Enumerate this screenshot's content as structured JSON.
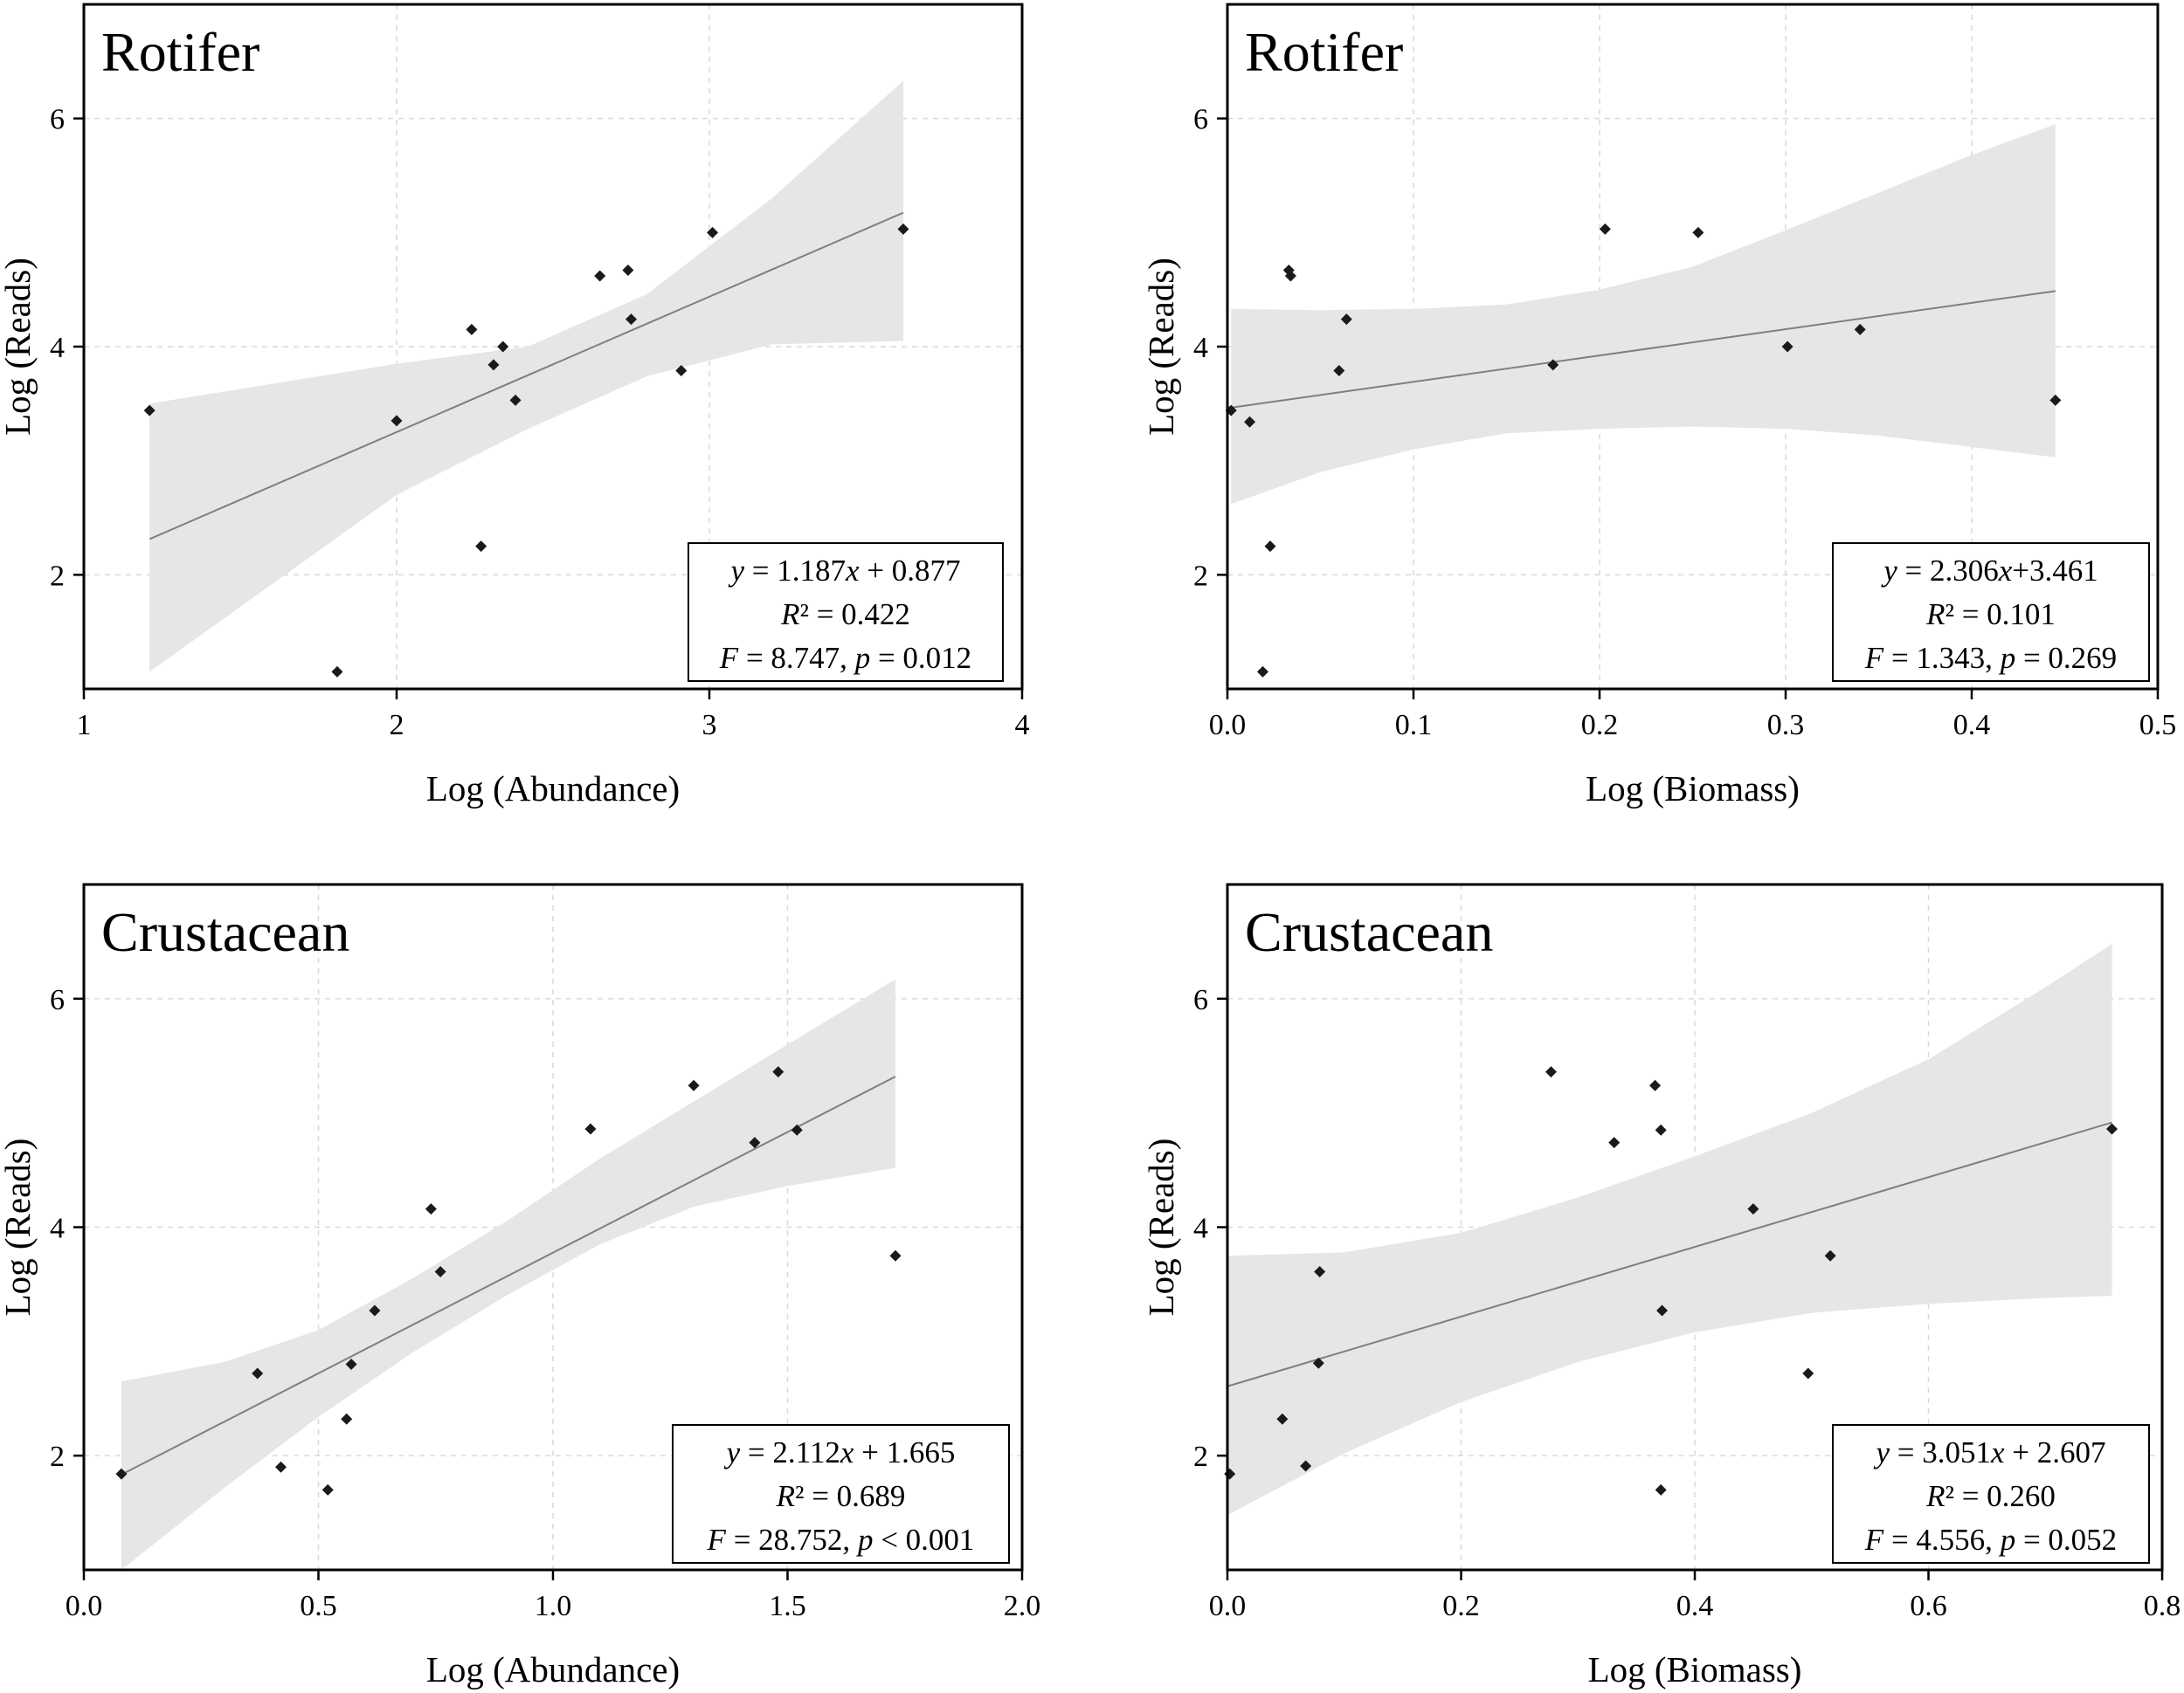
{
  "chart_data": [
    {
      "type": "scatter",
      "title": "Rotifer",
      "xlabel": "Log (Abundance)",
      "ylabel": "Log (Reads)",
      "xlim": [
        1,
        4
      ],
      "ylim": [
        1,
        7
      ],
      "xticks": [
        1,
        2,
        3,
        4
      ],
      "xtick_labels": [
        "1",
        "2",
        "3",
        "4"
      ],
      "yticks": [
        2,
        4,
        6
      ],
      "ytick_labels": [
        "2",
        "4",
        "6"
      ],
      "grid": true,
      "points": [
        {
          "x": 1.21,
          "y": 3.44
        },
        {
          "x": 1.81,
          "y": 1.15
        },
        {
          "x": 2.0,
          "y": 3.35
        },
        {
          "x": 2.24,
          "y": 4.15
        },
        {
          "x": 2.27,
          "y": 2.25
        },
        {
          "x": 2.31,
          "y": 3.84
        },
        {
          "x": 2.34,
          "y": 4.0
        },
        {
          "x": 2.38,
          "y": 3.53
        },
        {
          "x": 2.65,
          "y": 4.62
        },
        {
          "x": 2.74,
          "y": 4.67
        },
        {
          "x": 2.75,
          "y": 4.24
        },
        {
          "x": 2.91,
          "y": 3.79
        },
        {
          "x": 3.01,
          "y": 5.0
        },
        {
          "x": 3.62,
          "y": 5.03
        }
      ],
      "fit": {
        "slope": 1.187,
        "intercept": 0.877,
        "x_range": [
          1.21,
          3.62
        ]
      },
      "ci_band": {
        "x": [
          1.21,
          2.0,
          2.42,
          2.8,
          3.2,
          3.62
        ],
        "lower": [
          1.15,
          2.7,
          3.28,
          3.74,
          4.02,
          4.05
        ],
        "upper": [
          3.5,
          3.85,
          4.0,
          4.46,
          5.3,
          6.33
        ]
      },
      "stats": {
        "eq_y": "y",
        "eq_mid": " = 1.187",
        "eq_x": "x",
        "eq_tail": " + 0.877",
        "r2_label": "R",
        "r2_tail": "² = 0.422",
        "f_label": "F",
        "f_tail": " = 8.747, ",
        "p_label": "p",
        "p_tail": " = 0.012"
      }
    },
    {
      "type": "scatter",
      "title": "Rotifer",
      "xlabel": "Log (Biomass)",
      "ylabel": "Log (Reads)",
      "xlim": [
        0,
        0.5
      ],
      "ylim": [
        1,
        7
      ],
      "xticks": [
        0,
        0.1,
        0.2,
        0.3,
        0.4,
        0.5
      ],
      "xtick_labels": [
        "0.0",
        "0.1",
        "0.2",
        "0.3",
        "0.4",
        "0.5"
      ],
      "yticks": [
        2,
        4,
        6
      ],
      "ytick_labels": [
        "2",
        "4",
        "6"
      ],
      "grid": true,
      "points": [
        {
          "x": 0.002,
          "y": 3.44
        },
        {
          "x": 0.012,
          "y": 3.34
        },
        {
          "x": 0.019,
          "y": 1.15
        },
        {
          "x": 0.023,
          "y": 2.25
        },
        {
          "x": 0.033,
          "y": 4.67
        },
        {
          "x": 0.034,
          "y": 4.62
        },
        {
          "x": 0.06,
          "y": 3.79
        },
        {
          "x": 0.064,
          "y": 4.24
        },
        {
          "x": 0.175,
          "y": 3.84
        },
        {
          "x": 0.203,
          "y": 5.03
        },
        {
          "x": 0.253,
          "y": 5.0
        },
        {
          "x": 0.301,
          "y": 4.0
        },
        {
          "x": 0.34,
          "y": 4.15
        },
        {
          "x": 0.445,
          "y": 3.53
        }
      ],
      "fit": {
        "slope": 2.306,
        "intercept": 3.461,
        "x_range": [
          0.002,
          0.445
        ]
      },
      "ci_band": {
        "x": [
          0.002,
          0.05,
          0.1,
          0.15,
          0.2,
          0.25,
          0.3,
          0.35,
          0.4,
          0.445
        ],
        "lower": [
          2.62,
          2.9,
          3.1,
          3.24,
          3.28,
          3.3,
          3.28,
          3.22,
          3.12,
          3.03
        ],
        "upper": [
          4.33,
          4.32,
          4.33,
          4.37,
          4.5,
          4.7,
          5.02,
          5.35,
          5.68,
          5.95
        ]
      },
      "stats": {
        "eq_y": "y",
        "eq_mid": " = 2.306",
        "eq_x": "x",
        "eq_tail": "+3.461",
        "r2_label": "R",
        "r2_tail": "² = 0.101",
        "f_label": "F",
        "f_tail": " = 1.343, ",
        "p_label": "p",
        "p_tail": " = 0.269"
      }
    },
    {
      "type": "scatter",
      "title": "Crustacean",
      "xlabel": "Log (Abundance)",
      "ylabel": "Log (Reads)",
      "xlim": [
        0,
        2
      ],
      "ylim": [
        1,
        7
      ],
      "xticks": [
        0,
        0.5,
        1.0,
        1.5,
        2.0
      ],
      "xtick_labels": [
        "0.0",
        "0.5",
        "1.0",
        "1.5",
        "2.0"
      ],
      "yticks": [
        2,
        4,
        6
      ],
      "ytick_labels": [
        "2",
        "4",
        "6"
      ],
      "grid": true,
      "points": [
        {
          "x": 0.08,
          "y": 1.84
        },
        {
          "x": 0.37,
          "y": 2.72
        },
        {
          "x": 0.42,
          "y": 1.9
        },
        {
          "x": 0.52,
          "y": 1.7
        },
        {
          "x": 0.56,
          "y": 2.32
        },
        {
          "x": 0.57,
          "y": 2.8
        },
        {
          "x": 0.62,
          "y": 3.27
        },
        {
          "x": 0.74,
          "y": 4.16
        },
        {
          "x": 0.76,
          "y": 3.61
        },
        {
          "x": 1.08,
          "y": 4.86
        },
        {
          "x": 1.3,
          "y": 5.24
        },
        {
          "x": 1.43,
          "y": 4.74
        },
        {
          "x": 1.48,
          "y": 5.36
        },
        {
          "x": 1.52,
          "y": 4.85
        },
        {
          "x": 1.73,
          "y": 3.75
        }
      ],
      "fit": {
        "slope": 2.112,
        "intercept": 1.665,
        "x_range": [
          0.08,
          1.73
        ]
      },
      "ci_band": {
        "x": [
          0.08,
          0.3,
          0.5,
          0.7,
          0.9,
          1.1,
          1.3,
          1.5,
          1.73
        ],
        "lower": [
          1.0,
          1.72,
          2.34,
          2.9,
          3.4,
          3.85,
          4.18,
          4.36,
          4.52
        ],
        "upper": [
          2.65,
          2.82,
          3.1,
          3.55,
          4.05,
          4.6,
          5.1,
          5.6,
          6.17
        ]
      },
      "stats": {
        "eq_y": "y",
        "eq_mid": " = 2.112",
        "eq_x": "x",
        "eq_tail": " + 1.665",
        "r2_label": "R",
        "r2_tail": "² = 0.689",
        "f_label": "F",
        "f_tail": " = 28.752, ",
        "p_label": "p",
        "p_tail": " < 0.001"
      }
    },
    {
      "type": "scatter",
      "title": "Crustacean",
      "xlabel": "Log (Biomass)",
      "ylabel": "Log (Reads)",
      "xlim": [
        0,
        0.8
      ],
      "ylim": [
        1,
        7
      ],
      "xticks": [
        0,
        0.2,
        0.4,
        0.6,
        0.8
      ],
      "xtick_labels": [
        "0.0",
        "0.2",
        "0.4",
        "0.6",
        "0.8"
      ],
      "yticks": [
        2,
        4,
        6
      ],
      "ytick_labels": [
        "2",
        "4",
        "6"
      ],
      "grid": true,
      "points": [
        {
          "x": 0.002,
          "y": 1.84
        },
        {
          "x": 0.047,
          "y": 2.32
        },
        {
          "x": 0.067,
          "y": 1.91
        },
        {
          "x": 0.078,
          "y": 2.81
        },
        {
          "x": 0.079,
          "y": 3.61
        },
        {
          "x": 0.277,
          "y": 5.36
        },
        {
          "x": 0.331,
          "y": 4.74
        },
        {
          "x": 0.366,
          "y": 5.24
        },
        {
          "x": 0.371,
          "y": 4.85
        },
        {
          "x": 0.371,
          "y": 1.7
        },
        {
          "x": 0.372,
          "y": 3.27
        },
        {
          "x": 0.45,
          "y": 4.16
        },
        {
          "x": 0.497,
          "y": 2.72
        },
        {
          "x": 0.516,
          "y": 3.75
        },
        {
          "x": 0.757,
          "y": 4.86
        }
      ],
      "fit": {
        "slope": 3.051,
        "intercept": 2.607,
        "x_range": [
          0.0,
          0.757
        ]
      },
      "ci_band": {
        "x": [
          0.0,
          0.1,
          0.2,
          0.3,
          0.4,
          0.5,
          0.6,
          0.7,
          0.757
        ],
        "lower": [
          1.48,
          2.02,
          2.47,
          2.82,
          3.08,
          3.25,
          3.33,
          3.38,
          3.4
        ],
        "upper": [
          3.75,
          3.78,
          3.95,
          4.26,
          4.62,
          5.0,
          5.47,
          6.1,
          6.48
        ]
      },
      "stats": {
        "eq_y": "y",
        "eq_mid": " = 3.051",
        "eq_x": "x",
        "eq_tail": " + 2.607",
        "r2_label": "R",
        "r2_tail": "² = 0.260",
        "f_label": "F",
        "f_tail": " = 4.556, ",
        "p_label": "p",
        "p_tail": " = 0.052"
      }
    }
  ]
}
